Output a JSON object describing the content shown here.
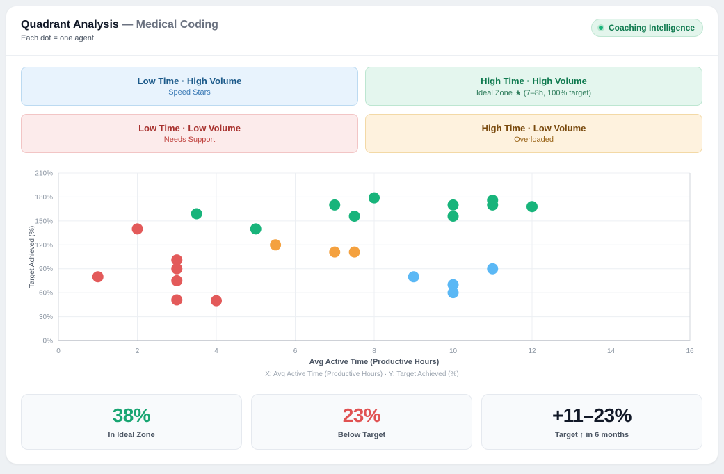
{
  "header": {
    "title": "Quadrant Analysis",
    "title_suffix": "— Medical Coding",
    "subtitle": "Each dot = one agent",
    "badge": "Coaching Intelligence"
  },
  "quadrants": {
    "top_left": {
      "title": "Low Time · High Volume",
      "subtitle": "Speed Stars"
    },
    "top_right": {
      "title": "High Time · High Volume",
      "subtitle": "Ideal Zone ★ (7–8h, 100% target)"
    },
    "bottom_left": {
      "title": "Low Time · Low Volume",
      "subtitle": "Needs Support"
    },
    "bottom_right": {
      "title": "High Time · Low Volume",
      "subtitle": "Overloaded"
    }
  },
  "colors": {
    "green": "#18b47b",
    "red": "#e35a5a",
    "orange": "#f4a13f",
    "blue": "#5bb8f5"
  },
  "chart_data": {
    "type": "scatter",
    "xlabel": "Avg Active Time (Productive Hours)",
    "ylabel": "Target Achieved (%)",
    "xlim": [
      0,
      16
    ],
    "ylim": [
      0,
      210
    ],
    "x_ticks": [
      0,
      2,
      4,
      6,
      8,
      10,
      12,
      14,
      16
    ],
    "y_ticks": [
      0,
      30,
      60,
      90,
      120,
      150,
      180,
      210
    ],
    "y_tick_suffix": "%",
    "grid": true,
    "caption": "X: Avg Active Time (Productive Hours)  ·  Y: Target Achieved (%)",
    "series": [
      {
        "color": "green",
        "points": [
          [
            3.5,
            159
          ],
          [
            5,
            140
          ],
          [
            7,
            170
          ],
          [
            7.5,
            156
          ],
          [
            8,
            179
          ],
          [
            10,
            170
          ],
          [
            10,
            156
          ],
          [
            11,
            176
          ],
          [
            11,
            170
          ],
          [
            12,
            168
          ]
        ]
      },
      {
        "color": "orange",
        "points": [
          [
            5.5,
            120
          ],
          [
            7,
            111
          ],
          [
            7.5,
            111
          ]
        ]
      },
      {
        "color": "red",
        "points": [
          [
            1,
            80
          ],
          [
            2,
            140
          ],
          [
            3,
            101
          ],
          [
            3,
            90
          ],
          [
            3,
            75
          ],
          [
            3,
            51
          ],
          [
            4,
            50
          ]
        ]
      },
      {
        "color": "blue",
        "points": [
          [
            9,
            80
          ],
          [
            10,
            70
          ],
          [
            10,
            60
          ],
          [
            11,
            90
          ]
        ]
      }
    ]
  },
  "stats": [
    {
      "value": "38%",
      "label": "In Ideal Zone"
    },
    {
      "value": "23%",
      "label": "Below Target"
    },
    {
      "value": "+11–23%",
      "label": "Target ↑ in 6 months"
    }
  ]
}
